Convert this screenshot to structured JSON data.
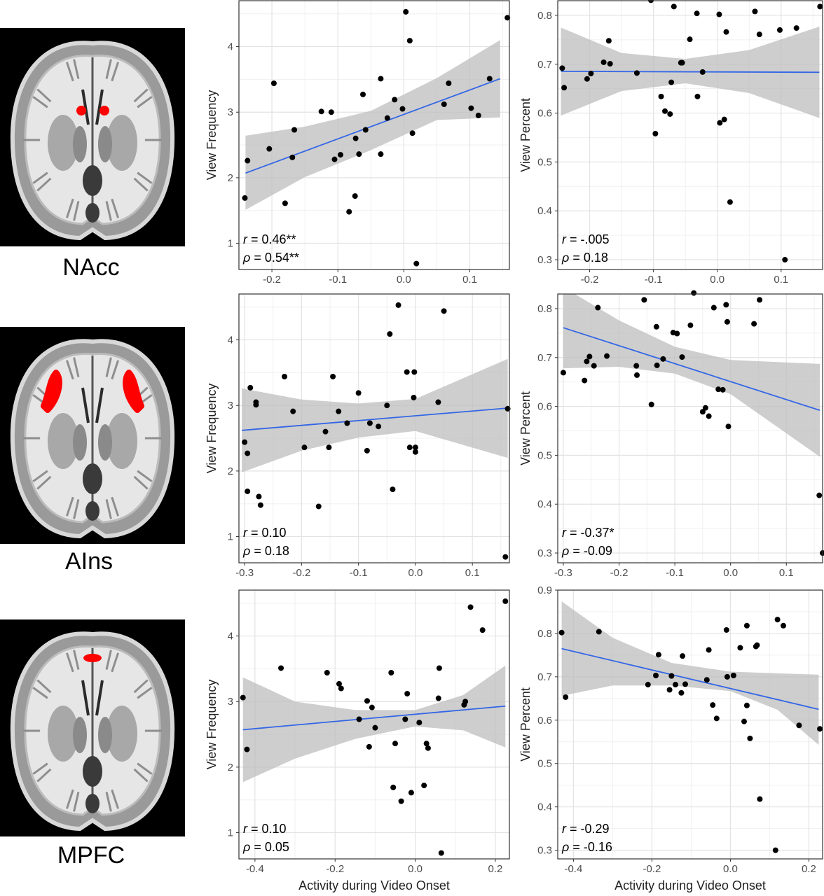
{
  "figure": {
    "x_axis_title": "Activity during Video Onset",
    "regions": [
      {
        "label": "NAcc",
        "highlight": "bilateral-dots"
      },
      {
        "label": "AIns",
        "highlight": "bilateral-insula"
      },
      {
        "label": "MPFC",
        "highlight": "medial-dot"
      }
    ]
  },
  "colors": {
    "points": "#000000",
    "fit_line": "#3366e6",
    "confidence_band": "#bebebe",
    "grid_major": "#e3e3e3",
    "grid_minor": "#f0f0f0",
    "panel_border": "#333333",
    "roi_red": "#ff0000"
  },
  "chart_data": [
    {
      "type": "scatter",
      "id": "nacc-frequency",
      "region": "NAcc",
      "xlabel": "",
      "ylabel": "View Frequency",
      "xlim": [
        -0.25,
        0.16
      ],
      "ylim": [
        0.6,
        4.7
      ],
      "xticks": [
        -0.2,
        -0.1,
        0.0,
        0.1
      ],
      "xtick_labels": [
        "-0.2",
        "-0.1",
        "0.0",
        "0.1"
      ],
      "yticks": [
        1,
        2,
        3,
        4
      ],
      "ytick_labels": [
        "1",
        "2",
        "3",
        "4"
      ],
      "stat_r": "0.46**",
      "stat_rho": "0.54**",
      "fit": {
        "x": [
          -0.24,
          0.146
        ],
        "y": [
          2.07,
          3.51
        ]
      },
      "band": {
        "x": [
          -0.24,
          -0.15,
          -0.05,
          0.05,
          0.146
        ],
        "upper": [
          2.64,
          2.78,
          3.02,
          3.52,
          4.1
        ],
        "lower": [
          1.51,
          2.01,
          2.42,
          2.88,
          2.92
        ]
      },
      "points": [
        [
          -0.241,
          1.69
        ],
        [
          -0.237,
          2.26
        ],
        [
          -0.204,
          2.44
        ],
        [
          -0.197,
          3.44
        ],
        [
          -0.18,
          1.61
        ],
        [
          -0.169,
          2.31
        ],
        [
          -0.166,
          2.73
        ],
        [
          -0.125,
          3.01
        ],
        [
          -0.11,
          3.0
        ],
        [
          -0.105,
          2.28
        ],
        [
          -0.096,
          2.35
        ],
        [
          -0.083,
          1.48
        ],
        [
          -0.074,
          1.72
        ],
        [
          -0.073,
          2.6
        ],
        [
          -0.068,
          2.36
        ],
        [
          -0.062,
          3.27
        ],
        [
          -0.058,
          2.73
        ],
        [
          -0.035,
          3.51
        ],
        [
          -0.035,
          2.36
        ],
        [
          -0.025,
          2.91
        ],
        [
          -0.014,
          3.19
        ],
        [
          -0.002,
          3.05
        ],
        [
          0.003,
          4.53
        ],
        [
          0.009,
          4.09
        ],
        [
          0.013,
          2.68
        ],
        [
          0.019,
          0.69
        ],
        [
          0.061,
          3.12
        ],
        [
          0.068,
          3.44
        ],
        [
          0.102,
          3.06
        ],
        [
          0.113,
          2.95
        ],
        [
          0.13,
          3.51
        ],
        [
          0.157,
          4.44
        ]
      ]
    },
    {
      "type": "scatter",
      "id": "nacc-percent",
      "region": "NAcc",
      "xlabel": "",
      "ylabel": "View Percent",
      "xlim": [
        -0.25,
        0.165
      ],
      "ylim": [
        0.28,
        0.83
      ],
      "xticks": [
        -0.2,
        -0.1,
        0.0,
        0.1
      ],
      "xtick_labels": [
        "-0.2",
        "-0.1",
        "0.0",
        "0.1"
      ],
      "yticks": [
        0.3,
        0.4,
        0.5,
        0.6,
        0.7,
        0.8
      ],
      "ytick_labels": [
        "0.3",
        "0.4",
        "0.5",
        "0.6",
        "0.7",
        "0.8"
      ],
      "stat_r": "-.005",
      "stat_rho": "0.18",
      "fit": {
        "x": [
          -0.245,
          0.16
        ],
        "y": [
          0.6855,
          0.6835
        ]
      },
      "band": {
        "x": [
          -0.245,
          -0.15,
          -0.05,
          0.05,
          0.16
        ],
        "upper": [
          0.775,
          0.723,
          0.711,
          0.729,
          0.777
        ],
        "lower": [
          0.595,
          0.645,
          0.661,
          0.641,
          0.59
        ]
      },
      "points": [
        [
          -0.243,
          0.692
        ],
        [
          -0.24,
          0.652
        ],
        [
          -0.204,
          0.67
        ],
        [
          -0.198,
          0.681
        ],
        [
          -0.178,
          0.704
        ],
        [
          -0.17,
          0.748
        ],
        [
          -0.168,
          0.701
        ],
        [
          -0.126,
          0.682
        ],
        [
          -0.104,
          0.831
        ],
        [
          -0.097,
          0.558
        ],
        [
          -0.088,
          0.634
        ],
        [
          -0.082,
          0.604
        ],
        [
          -0.074,
          0.598
        ],
        [
          -0.072,
          0.663
        ],
        [
          -0.068,
          0.818
        ],
        [
          -0.057,
          0.703
        ],
        [
          -0.055,
          0.703
        ],
        [
          -0.043,
          0.751
        ],
        [
          -0.032,
          0.804
        ],
        [
          -0.031,
          0.634
        ],
        [
          -0.023,
          0.684
        ],
        [
          0.003,
          0.802
        ],
        [
          0.004,
          0.58
        ],
        [
          0.011,
          0.587
        ],
        [
          0.014,
          0.766
        ],
        [
          0.02,
          0.418
        ],
        [
          0.059,
          0.808
        ],
        [
          0.066,
          0.761
        ],
        [
          0.098,
          0.77
        ],
        [
          0.106,
          0.3
        ],
        [
          0.124,
          0.774
        ],
        [
          0.161,
          0.818
        ]
      ]
    },
    {
      "type": "scatter",
      "id": "ains-frequency",
      "region": "AIns",
      "xlabel": "",
      "ylabel": "View Frequency",
      "xlim": [
        -0.31,
        0.165
      ],
      "ylim": [
        0.6,
        4.7
      ],
      "xticks": [
        -0.3,
        -0.2,
        -0.1,
        0.0,
        0.1
      ],
      "xtick_labels": [
        "-0.3",
        "-0.2",
        "-0.1",
        "0.0",
        "0.1"
      ],
      "yticks": [
        1,
        2,
        3,
        4
      ],
      "ytick_labels": [
        "1",
        "2",
        "3",
        "4"
      ],
      "stat_r": "0.10",
      "stat_rho": "0.18",
      "fit": {
        "x": [
          -0.305,
          0.162
        ],
        "y": [
          2.62,
          2.96
        ]
      },
      "band": {
        "x": [
          -0.305,
          -0.2,
          -0.1,
          0.0,
          0.162
        ],
        "upper": [
          3.26,
          3.09,
          3.03,
          3.1,
          3.71
        ],
        "lower": [
          1.98,
          2.31,
          2.51,
          2.61,
          2.2
        ]
      },
      "points": [
        [
          -0.3,
          2.44
        ],
        [
          -0.295,
          2.27
        ],
        [
          -0.295,
          1.69
        ],
        [
          -0.29,
          3.27
        ],
        [
          -0.28,
          3.01
        ],
        [
          -0.28,
          3.05
        ],
        [
          -0.275,
          1.61
        ],
        [
          -0.272,
          1.48
        ],
        [
          -0.23,
          3.44
        ],
        [
          -0.215,
          2.91
        ],
        [
          -0.195,
          2.36
        ],
        [
          -0.17,
          1.46
        ],
        [
          -0.158,
          2.6
        ],
        [
          -0.152,
          2.36
        ],
        [
          -0.145,
          3.44
        ],
        [
          -0.135,
          2.91
        ],
        [
          -0.12,
          2.73
        ],
        [
          -0.1,
          3.19
        ],
        [
          -0.085,
          2.31
        ],
        [
          -0.08,
          2.73
        ],
        [
          -0.065,
          2.68
        ],
        [
          -0.05,
          3.0
        ],
        [
          -0.045,
          4.09
        ],
        [
          -0.04,
          1.72
        ],
        [
          -0.03,
          4.53
        ],
        [
          -0.015,
          3.51
        ],
        [
          -0.01,
          2.36
        ],
        [
          -0.003,
          3.12
        ],
        [
          -0.002,
          3.51
        ],
        [
          0.0,
          2.29
        ],
        [
          0.0,
          2.36
        ],
        [
          0.04,
          3.05
        ],
        [
          0.05,
          4.44
        ],
        [
          0.158,
          0.69
        ],
        [
          0.162,
          2.95
        ]
      ]
    },
    {
      "type": "scatter",
      "id": "ains-percent",
      "region": "AIns",
      "xlabel": "",
      "ylabel": "View Percent",
      "xlim": [
        -0.31,
        0.165
      ],
      "ylim": [
        0.28,
        0.83
      ],
      "xticks": [
        -0.3,
        -0.2,
        -0.1,
        0.0,
        0.1
      ],
      "xtick_labels": [
        "-0.3",
        "-0.2",
        "-0.1",
        "0.0",
        "0.1"
      ],
      "yticks": [
        0.3,
        0.4,
        0.5,
        0.6,
        0.7,
        0.8
      ],
      "ytick_labels": [
        "0.3",
        "0.4",
        "0.5",
        "0.6",
        "0.7",
        "0.8"
      ],
      "stat_r": "-0.37*",
      "stat_rho": "-0.09",
      "fit": {
        "x": [
          -0.3,
          0.16
        ],
        "y": [
          0.761,
          0.592
        ]
      },
      "band": {
        "x": [
          -0.3,
          -0.2,
          -0.1,
          0.0,
          0.16
        ],
        "upper": [
          0.844,
          0.776,
          0.722,
          0.695,
          0.687
        ],
        "lower": [
          0.678,
          0.681,
          0.667,
          0.625,
          0.497
        ]
      },
      "points": [
        [
          -0.3,
          0.669
        ],
        [
          -0.262,
          0.653
        ],
        [
          -0.258,
          0.692
        ],
        [
          -0.253,
          0.702
        ],
        [
          -0.245,
          0.683
        ],
        [
          -0.238,
          0.802
        ],
        [
          -0.222,
          0.703
        ],
        [
          -0.169,
          0.683
        ],
        [
          -0.168,
          0.664
        ],
        [
          -0.155,
          0.818
        ],
        [
          -0.142,
          0.604
        ],
        [
          -0.133,
          0.763
        ],
        [
          -0.132,
          0.684
        ],
        [
          -0.121,
          0.697
        ],
        [
          -0.103,
          0.751
        ],
        [
          -0.096,
          0.749
        ],
        [
          -0.087,
          0.701
        ],
        [
          -0.072,
          0.766
        ],
        [
          -0.066,
          0.832
        ],
        [
          -0.05,
          0.589
        ],
        [
          -0.045,
          0.597
        ],
        [
          -0.039,
          0.58
        ],
        [
          -0.03,
          0.802
        ],
        [
          -0.022,
          0.635
        ],
        [
          -0.014,
          0.634
        ],
        [
          -0.008,
          0.808
        ],
        [
          -0.006,
          0.773
        ],
        [
          -0.004,
          0.559
        ],
        [
          0.042,
          0.769
        ],
        [
          0.052,
          0.818
        ],
        [
          0.159,
          0.418
        ],
        [
          0.165,
          0.3
        ]
      ]
    },
    {
      "type": "scatter",
      "id": "mpfc-frequency",
      "region": "MPFC",
      "xlabel": "Activity during Video Onset",
      "ylabel": "View Frequency",
      "xlim": [
        -0.44,
        0.235
      ],
      "ylim": [
        0.6,
        4.7
      ],
      "xticks": [
        -0.4,
        -0.2,
        0.0,
        0.2
      ],
      "xtick_labels": [
        "-0.4",
        "-0.2",
        "0.0",
        "0.2"
      ],
      "yticks": [
        1,
        2,
        3,
        4
      ],
      "ytick_labels": [
        "1",
        "2",
        "3",
        "4"
      ],
      "stat_r": "0.10",
      "stat_rho": "0.05",
      "fit": {
        "x": [
          -0.43,
          0.225
        ],
        "y": [
          2.57,
          2.93
        ]
      },
      "band": {
        "x": [
          -0.43,
          -0.3,
          -0.15,
          0.0,
          0.12,
          0.225
        ],
        "upper": [
          3.37,
          3.0,
          2.87,
          2.87,
          3.1,
          3.55
        ],
        "lower": [
          1.77,
          2.13,
          2.43,
          2.62,
          2.56,
          2.3
        ]
      },
      "points": [
        [
          -0.43,
          3.06
        ],
        [
          -0.42,
          2.27
        ],
        [
          -0.335,
          3.51
        ],
        [
          -0.22,
          3.44
        ],
        [
          -0.19,
          3.27
        ],
        [
          -0.185,
          3.2
        ],
        [
          -0.14,
          2.73
        ],
        [
          -0.12,
          3.01
        ],
        [
          -0.115,
          2.31
        ],
        [
          -0.108,
          2.91
        ],
        [
          -0.1,
          2.6
        ],
        [
          -0.06,
          3.44
        ],
        [
          -0.055,
          1.69
        ],
        [
          -0.05,
          2.36
        ],
        [
          -0.035,
          1.48
        ],
        [
          -0.025,
          2.73
        ],
        [
          -0.02,
          3.12
        ],
        [
          -0.01,
          1.61
        ],
        [
          0.01,
          2.68
        ],
        [
          0.022,
          1.72
        ],
        [
          0.028,
          2.36
        ],
        [
          0.032,
          2.29
        ],
        [
          0.058,
          3.05
        ],
        [
          0.065,
          0.69
        ],
        [
          0.122,
          2.95
        ],
        [
          0.125,
          3.0
        ],
        [
          0.06,
          3.51
        ],
        [
          0.138,
          4.44
        ],
        [
          0.168,
          4.09
        ],
        [
          0.225,
          4.53
        ]
      ]
    },
    {
      "type": "scatter",
      "id": "mpfc-percent",
      "region": "MPFC",
      "xlabel": "Activity during Video Onset",
      "ylabel": "View Percent",
      "xlim": [
        -0.44,
        0.235
      ],
      "ylim": [
        0.28,
        0.9
      ],
      "xticks": [
        -0.4,
        -0.2,
        0.0,
        0.2
      ],
      "xtick_labels": [
        "-0.4",
        "-0.2",
        "0.0",
        "0.2"
      ],
      "yticks": [
        0.3,
        0.4,
        0.5,
        0.6,
        0.7,
        0.8,
        0.9
      ],
      "ytick_labels": [
        "0.3",
        "0.4",
        "0.5",
        "0.6",
        "0.7",
        "0.8",
        "0.9"
      ],
      "stat_r": "-0.29",
      "stat_rho": "-0.16",
      "fit": {
        "x": [
          -0.43,
          0.225
        ],
        "y": [
          0.765,
          0.625
        ]
      },
      "band": {
        "x": [
          -0.43,
          -0.3,
          -0.15,
          0.0,
          0.12,
          0.225
        ],
        "upper": [
          0.874,
          0.79,
          0.732,
          0.712,
          0.708,
          0.705
        ],
        "lower": [
          0.656,
          0.68,
          0.68,
          0.667,
          0.624,
          0.543
        ]
      },
      "points": [
        [
          -0.43,
          0.802
        ],
        [
          -0.42,
          0.653
        ],
        [
          -0.335,
          0.804
        ],
        [
          -0.21,
          0.682
        ],
        [
          -0.19,
          0.703
        ],
        [
          -0.183,
          0.751
        ],
        [
          -0.155,
          0.67
        ],
        [
          -0.15,
          0.702
        ],
        [
          -0.14,
          0.682
        ],
        [
          -0.125,
          0.663
        ],
        [
          -0.122,
          0.748
        ],
        [
          -0.115,
          0.683
        ],
        [
          -0.06,
          0.693
        ],
        [
          -0.055,
          0.762
        ],
        [
          -0.045,
          0.635
        ],
        [
          -0.035,
          0.604
        ],
        [
          -0.01,
          0.808
        ],
        [
          -0.008,
          0.7
        ],
        [
          0.008,
          0.703
        ],
        [
          0.025,
          0.767
        ],
        [
          0.035,
          0.597
        ],
        [
          0.042,
          0.818
        ],
        [
          0.042,
          0.634
        ],
        [
          0.05,
          0.558
        ],
        [
          0.065,
          0.77
        ],
        [
          0.068,
          0.773
        ],
        [
          0.075,
          0.418
        ],
        [
          0.115,
          0.3
        ],
        [
          0.12,
          0.832
        ],
        [
          0.135,
          0.818
        ],
        [
          0.175,
          0.588
        ],
        [
          0.228,
          0.58
        ]
      ]
    }
  ]
}
